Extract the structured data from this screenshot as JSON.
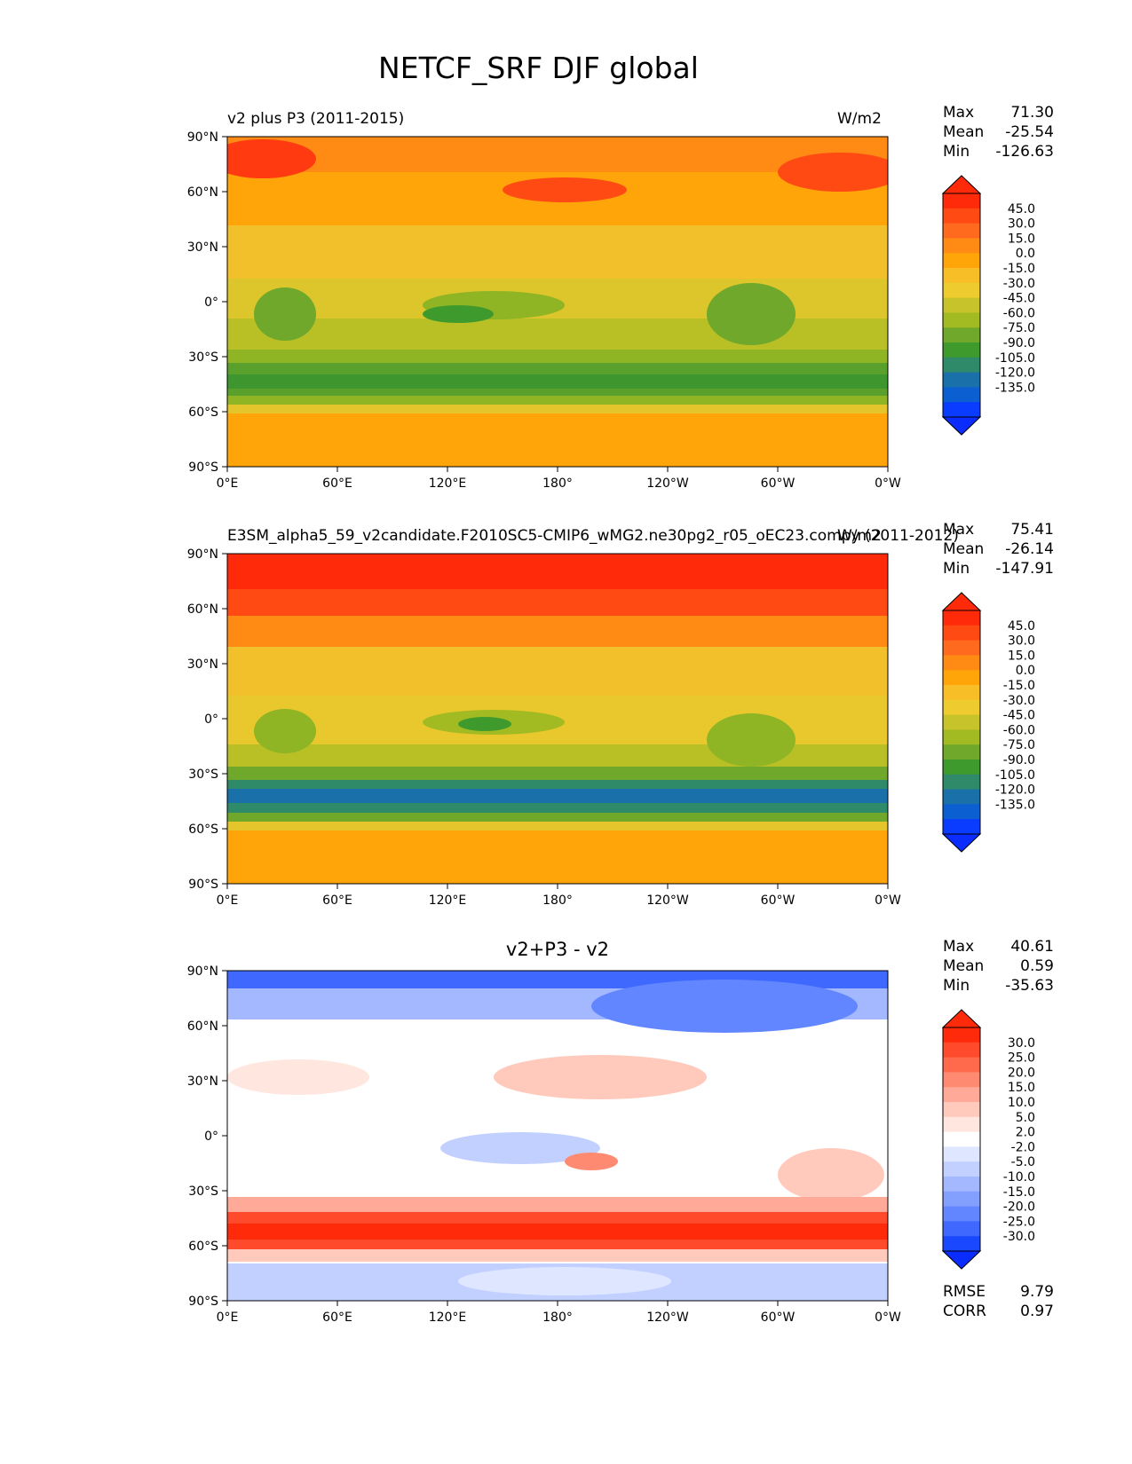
{
  "figure": {
    "title": "NETCF_SRF DJF global"
  },
  "axes": {
    "lat_ticks": [
      "90°N",
      "60°N",
      "30°N",
      "0°",
      "30°S",
      "60°S",
      "90°S"
    ],
    "lon_ticks": [
      "0°E",
      "60°E",
      "120°E",
      "180°",
      "120°W",
      "60°W",
      "0°W"
    ]
  },
  "panels": [
    {
      "title_left": "v2 plus P3 (2011-2015)",
      "title_center": "",
      "units": "W/m2",
      "stats": [
        {
          "label": "Max",
          "value": "71.30"
        },
        {
          "label": "Mean",
          "value": "-25.54"
        },
        {
          "label": "Min",
          "value": "-126.63"
        }
      ],
      "colorbar": {
        "ticks": [
          "45.0",
          "30.0",
          "15.0",
          "0.0",
          "-15.0",
          "-30.0",
          "-45.0",
          "-60.0",
          "-75.0",
          "-90.0",
          "-105.0",
          "-120.0",
          "-135.0"
        ],
        "colors": [
          "#ff2a0a",
          "#ff4a14",
          "#ff6a1e",
          "#ff8a14",
          "#ffa50a",
          "#f7be28",
          "#eecb2e",
          "#c7c32a",
          "#a3bb22",
          "#6fa82a",
          "#3f9a2e",
          "#2f8a6a",
          "#1a70a8",
          "#0b5fd0",
          "#0a3cff"
        ],
        "low_color": "#0a2cff",
        "high_color": "#ff2a0a"
      },
      "extra_stats": []
    },
    {
      "title_left": "E3SM_alpha5_59_v2candidate.F2010SC5-CMIP6_wMG2.ne30pg2_r05_oEC23.compy (2011-2012)",
      "title_center": "",
      "units": "W/m2",
      "stats": [
        {
          "label": "Max",
          "value": "75.41"
        },
        {
          "label": "Mean",
          "value": "-26.14"
        },
        {
          "label": "Min",
          "value": "-147.91"
        }
      ],
      "colorbar": {
        "ticks": [
          "45.0",
          "30.0",
          "15.0",
          "0.0",
          "-15.0",
          "-30.0",
          "-45.0",
          "-60.0",
          "-75.0",
          "-90.0",
          "-105.0",
          "-120.0",
          "-135.0"
        ],
        "colors": [
          "#ff2a0a",
          "#ff4a14",
          "#ff6a1e",
          "#ff8a14",
          "#ffa50a",
          "#f7be28",
          "#eecb2e",
          "#c7c32a",
          "#a3bb22",
          "#6fa82a",
          "#3f9a2e",
          "#2f8a6a",
          "#1a70a8",
          "#0b5fd0",
          "#0a3cff"
        ],
        "low_color": "#0a2cff",
        "high_color": "#ff2a0a"
      },
      "extra_stats": []
    },
    {
      "title_left": "",
      "title_center": "v2+P3 - v2",
      "units": "",
      "stats": [
        {
          "label": "Max",
          "value": "40.61"
        },
        {
          "label": "Mean",
          "value": "0.59"
        },
        {
          "label": "Min",
          "value": "-35.63"
        }
      ],
      "colorbar": {
        "ticks": [
          "30.0",
          "25.0",
          "20.0",
          "15.0",
          "10.0",
          "5.0",
          "2.0",
          "-2.0",
          "-5.0",
          "-10.0",
          "-15.0",
          "-20.0",
          "-25.0",
          "-30.0"
        ],
        "colors": [
          "#ff2a0a",
          "#ff4a2c",
          "#ff6a4c",
          "#ff8a72",
          "#ffaa98",
          "#ffcabc",
          "#ffe6de",
          "#ffffff",
          "#dfe6ff",
          "#c2d0ff",
          "#a4b8ff",
          "#84a0ff",
          "#6286ff",
          "#3f68ff",
          "#1a48ff"
        ],
        "low_color": "#0a2cff",
        "high_color": "#ff2a0a"
      },
      "extra_stats": [
        {
          "label": "RMSE",
          "value": "9.79"
        },
        {
          "label": "CORR",
          "value": "0.97"
        }
      ]
    }
  ]
}
